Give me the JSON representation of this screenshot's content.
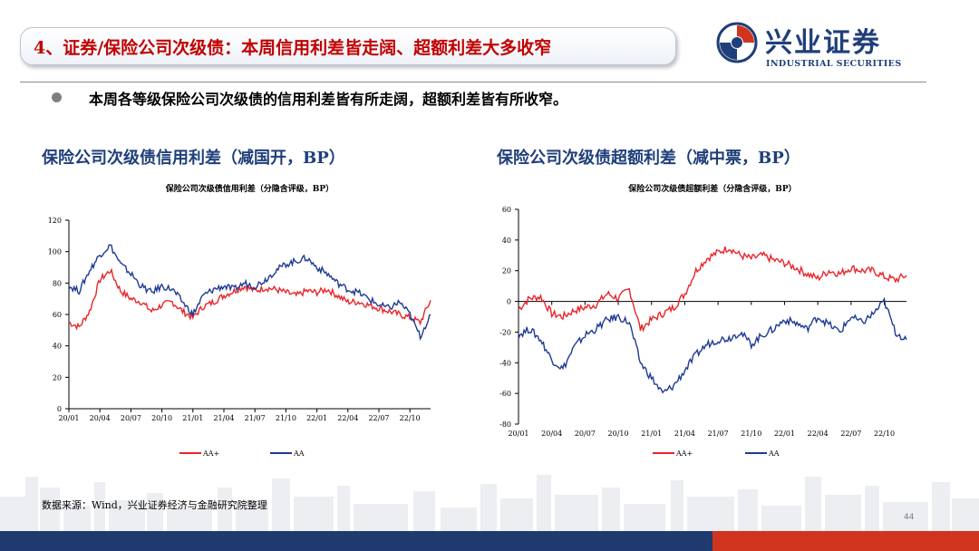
{
  "header": {
    "title": "4、证券/保险公司次级债：本周信用利差皆走阔、超额利差大多收窄",
    "brand_cn": "兴业证券",
    "brand_en": "INDUSTRIAL SECURITIES"
  },
  "bullet": "本周各等级保险公司次级债的信用利差皆有所走阔，超额利差皆有所收窄。",
  "left_subtitle": "保险公司次级债信用利差（减国开，BP）",
  "right_subtitle": "保险公司次级债超额利差（减中票，BP）",
  "source": "数据来源：Wind，兴业证券经济与金融研究院整理",
  "page_number": "44",
  "colors": {
    "aa_plus": "#e8262b",
    "aa": "#1f3a93",
    "title_red": "#c00000",
    "brand_blue": "#1f3f7a"
  },
  "chart_data": [
    {
      "type": "line",
      "title": "保险公司次级债信用利差（分隐含评级，BP）",
      "x_ticks": [
        "20/01",
        "20/04",
        "20/07",
        "20/10",
        "21/01",
        "21/04",
        "21/07",
        "21/10",
        "22/01",
        "22/04",
        "22/07",
        "22/10"
      ],
      "x_range": [
        "2020-01",
        "2022-12"
      ],
      "ylim": [
        0,
        120
      ],
      "y_ticks": [
        0,
        20,
        40,
        60,
        80,
        100,
        120
      ],
      "legend_position": "bottom",
      "x": [
        "2020-01",
        "2020-02",
        "2020-03",
        "2020-04",
        "2020-05",
        "2020-06",
        "2020-07",
        "2020-08",
        "2020-09",
        "2020-10",
        "2020-11",
        "2020-12",
        "2021-01",
        "2021-02",
        "2021-03",
        "2021-04",
        "2021-05",
        "2021-06",
        "2021-07",
        "2021-08",
        "2021-09",
        "2021-10",
        "2021-11",
        "2021-12",
        "2022-01",
        "2022-02",
        "2022-03",
        "2022-04",
        "2022-05",
        "2022-06",
        "2022-07",
        "2022-08",
        "2022-09",
        "2022-10",
        "2022-11",
        "2022-12"
      ],
      "series": [
        {
          "name": "AA+",
          "values": [
            55,
            52,
            62,
            82,
            88,
            75,
            70,
            68,
            62,
            66,
            68,
            62,
            58,
            65,
            68,
            72,
            75,
            78,
            75,
            77,
            76,
            74,
            72,
            75,
            74,
            76,
            72,
            68,
            68,
            66,
            64,
            62,
            60,
            58,
            55,
            69
          ]
        },
        {
          "name": "AA",
          "values": [
            78,
            75,
            88,
            98,
            104,
            92,
            86,
            78,
            74,
            78,
            76,
            68,
            60,
            72,
            76,
            78,
            76,
            80,
            78,
            82,
            88,
            92,
            94,
            96,
            90,
            86,
            80,
            76,
            74,
            70,
            66,
            64,
            68,
            60,
            46,
            60
          ]
        }
      ]
    },
    {
      "type": "line",
      "title": "保险公司次级债超额利差（分隐含评级，BP）",
      "x_ticks": [
        "20/01",
        "20/04",
        "20/07",
        "20/10",
        "21/01",
        "21/04",
        "21/07",
        "21/10",
        "22/01",
        "22/04",
        "22/07",
        "22/10"
      ],
      "x_range": [
        "2020-01",
        "2022-12"
      ],
      "ylim": [
        -80,
        60
      ],
      "y_ticks": [
        -80,
        -60,
        -40,
        -20,
        0,
        20,
        40,
        60
      ],
      "legend_position": "bottom",
      "x": [
        "2020-01",
        "2020-02",
        "2020-03",
        "2020-04",
        "2020-05",
        "2020-06",
        "2020-07",
        "2020-08",
        "2020-09",
        "2020-10",
        "2020-11",
        "2020-12",
        "2021-01",
        "2021-02",
        "2021-03",
        "2021-04",
        "2021-05",
        "2021-06",
        "2021-07",
        "2021-08",
        "2021-09",
        "2021-10",
        "2021-11",
        "2021-12",
        "2022-01",
        "2022-02",
        "2022-03",
        "2022-04",
        "2022-05",
        "2022-06",
        "2022-07",
        "2022-08",
        "2022-09",
        "2022-10",
        "2022-11",
        "2022-12"
      ],
      "series": [
        {
          "name": "AA+",
          "values": [
            -5,
            2,
            3,
            -8,
            -10,
            -6,
            -4,
            -2,
            5,
            2,
            8,
            -18,
            -12,
            -8,
            -4,
            5,
            20,
            28,
            32,
            35,
            30,
            28,
            30,
            27,
            25,
            22,
            18,
            15,
            20,
            18,
            22,
            20,
            20,
            16,
            14,
            17
          ]
        },
        {
          "name": "AA",
          "values": [
            -22,
            -18,
            -25,
            -38,
            -44,
            -30,
            -22,
            -18,
            -12,
            -10,
            -14,
            -40,
            -50,
            -60,
            -55,
            -45,
            -35,
            -28,
            -25,
            -24,
            -20,
            -28,
            -22,
            -18,
            -12,
            -14,
            -18,
            -10,
            -15,
            -20,
            -10,
            -14,
            -8,
            0,
            -20,
            -25
          ]
        }
      ]
    }
  ]
}
